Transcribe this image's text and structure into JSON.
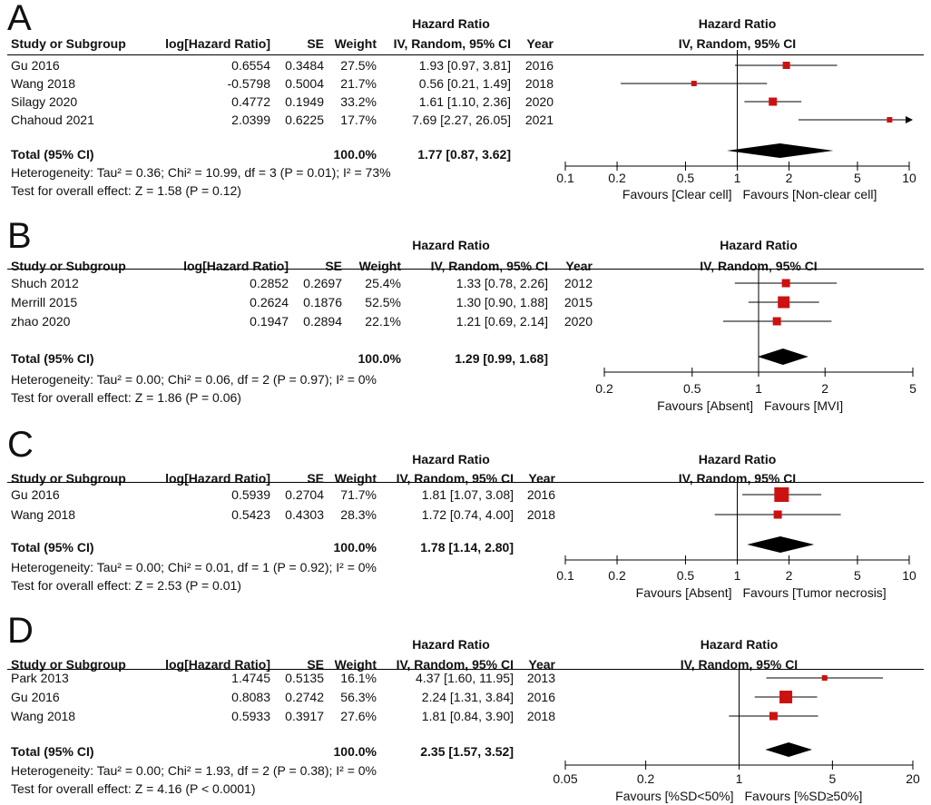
{
  "columns": {
    "study": "Study or Subgroup",
    "loghr": "log[Hazard Ratio]",
    "se": "SE",
    "weight": "Weight",
    "hr_title": "Hazard Ratio",
    "hr_sub": "IV, Random, 95% CI",
    "year": "Year"
  },
  "chart_data": [
    {
      "type": "forest",
      "label": "A",
      "rows": [
        {
          "study": "Gu 2016",
          "loghr": "0.6554",
          "se": "0.3484",
          "weight": "27.5%",
          "ci": "1.93 [0.97, 3.81]",
          "year": "2016",
          "hr": 1.93,
          "lo": 0.97,
          "hi": 3.81
        },
        {
          "study": "Wang  2018",
          "loghr": "-0.5798",
          "se": "0.5004",
          "weight": "21.7%",
          "ci": "0.56 [0.21, 1.49]",
          "year": "2018",
          "hr": 0.56,
          "lo": 0.21,
          "hi": 1.49
        },
        {
          "study": "Silagy 2020",
          "loghr": "0.4772",
          "se": "0.1949",
          "weight": "33.2%",
          "ci": "1.61 [1.10, 2.36]",
          "year": "2020",
          "hr": 1.61,
          "lo": 1.1,
          "hi": 2.36
        },
        {
          "study": "Chahoud 2021",
          "loghr": "2.0399",
          "se": "0.6225",
          "weight": "17.7%",
          "ci": "7.69 [2.27, 26.05]",
          "year": "2021",
          "hr": 7.69,
          "lo": 2.27,
          "hi": 26.05
        }
      ],
      "total": {
        "label": "Total (95% CI)",
        "weight": "100.0%",
        "ci": "1.77 [0.87, 3.62]",
        "hr": 1.77,
        "lo": 0.87,
        "hi": 3.62
      },
      "heterogeneity": "Heterogeneity: Tau² = 0.36; Chi² = 10.99, df = 3 (P = 0.01); I² = 73%",
      "overall": "Test for overall effect: Z = 1.58 (P = 0.12)",
      "axis": {
        "min": 0.1,
        "max": 10,
        "ticks": [
          0.1,
          0.2,
          0.5,
          1,
          2,
          5,
          10
        ],
        "tick_labels": [
          "0.1",
          "0.2",
          "0.5",
          "1",
          "2",
          "5",
          "10"
        ]
      },
      "favours_left": "Favours [Clear cell]",
      "favours_right": "Favours [Non-clear cell]"
    },
    {
      "type": "forest",
      "label": "B",
      "rows": [
        {
          "study": "Shuch 2012",
          "loghr": "0.2852",
          "se": "0.2697",
          "weight": "25.4%",
          "ci": "1.33 [0.78, 2.26]",
          "year": "2012",
          "hr": 1.33,
          "lo": 0.78,
          "hi": 2.26
        },
        {
          "study": "Merrill 2015",
          "loghr": "0.2624",
          "se": "0.1876",
          "weight": "52.5%",
          "ci": "1.30 [0.90, 1.88]",
          "year": "2015",
          "hr": 1.3,
          "lo": 0.9,
          "hi": 1.88
        },
        {
          "study": "zhao 2020",
          "loghr": "0.1947",
          "se": "0.2894",
          "weight": "22.1%",
          "ci": "1.21 [0.69, 2.14]",
          "year": "2020",
          "hr": 1.21,
          "lo": 0.69,
          "hi": 2.14
        }
      ],
      "total": {
        "label": "Total (95% CI)",
        "weight": "100.0%",
        "ci": "1.29 [0.99, 1.68]",
        "hr": 1.29,
        "lo": 0.99,
        "hi": 1.68
      },
      "heterogeneity": "Heterogeneity: Tau² = 0.00; Chi² = 0.06, df = 2 (P = 0.97); I² = 0%",
      "overall": "Test for overall effect: Z = 1.86 (P = 0.06)",
      "axis": {
        "min": 0.2,
        "max": 5,
        "ticks": [
          0.2,
          0.5,
          1,
          2,
          5
        ],
        "tick_labels": [
          "0.2",
          "0.5",
          "1",
          "2",
          "5"
        ]
      },
      "favours_left": "Favours [Absent]",
      "favours_right": "Favours [MVI]"
    },
    {
      "type": "forest",
      "label": "C",
      "rows": [
        {
          "study": "Gu 2016",
          "loghr": "0.5939",
          "se": "0.2704",
          "weight": "71.7%",
          "ci": "1.81 [1.07, 3.08]",
          "year": "2016",
          "hr": 1.81,
          "lo": 1.07,
          "hi": 3.08
        },
        {
          "study": "Wang  2018",
          "loghr": "0.5423",
          "se": "0.4303",
          "weight": "28.3%",
          "ci": "1.72 [0.74, 4.00]",
          "year": "2018",
          "hr": 1.72,
          "lo": 0.74,
          "hi": 4.0
        }
      ],
      "total": {
        "label": "Total (95% CI)",
        "weight": "100.0%",
        "ci": "1.78 [1.14, 2.80]",
        "hr": 1.78,
        "lo": 1.14,
        "hi": 2.8
      },
      "heterogeneity": "Heterogeneity: Tau² = 0.00; Chi² = 0.01, df = 1 (P = 0.92); I² = 0%",
      "overall": "Test for overall effect: Z = 2.53 (P = 0.01)",
      "axis": {
        "min": 0.1,
        "max": 10,
        "ticks": [
          0.1,
          0.2,
          0.5,
          1,
          2,
          5,
          10
        ],
        "tick_labels": [
          "0.1",
          "0.2",
          "0.5",
          "1",
          "2",
          "5",
          "10"
        ]
      },
      "favours_left": "Favours [Absent]",
      "favours_right": "Favours [Tumor necrosis]"
    },
    {
      "type": "forest",
      "label": "D",
      "rows": [
        {
          "study": "Park 2013",
          "loghr": "1.4745",
          "se": "0.5135",
          "weight": "16.1%",
          "ci": "4.37 [1.60, 11.95]",
          "year": "2013",
          "hr": 4.37,
          "lo": 1.6,
          "hi": 11.95
        },
        {
          "study": "Gu 2016",
          "loghr": "0.8083",
          "se": "0.2742",
          "weight": "56.3%",
          "ci": "2.24 [1.31, 3.84]",
          "year": "2016",
          "hr": 2.24,
          "lo": 1.31,
          "hi": 3.84
        },
        {
          "study": "Wang  2018",
          "loghr": "0.5933",
          "se": "0.3917",
          "weight": "27.6%",
          "ci": "1.81 [0.84, 3.90]",
          "year": "2018",
          "hr": 1.81,
          "lo": 0.84,
          "hi": 3.9
        }
      ],
      "total": {
        "label": "Total (95% CI)",
        "weight": "100.0%",
        "ci": "2.35 [1.57, 3.52]",
        "hr": 2.35,
        "lo": 1.57,
        "hi": 3.52
      },
      "heterogeneity": "Heterogeneity: Tau² = 0.00; Chi² = 1.93, df = 2 (P = 0.38); I² = 0%",
      "overall": "Test for overall effect: Z = 4.16 (P < 0.0001)",
      "axis": {
        "min": 0.05,
        "max": 20,
        "ticks": [
          0.05,
          0.2,
          1,
          5,
          20
        ],
        "tick_labels": [
          "0.05",
          "0.2",
          "1",
          "5",
          "20"
        ]
      },
      "favours_left": "Favours [%SD<50%]",
      "favours_right": "Favours [%SD≥50%]"
    }
  ],
  "colors": {
    "marker": "#cc1111",
    "diamond": "#000000",
    "line": "#000000"
  }
}
